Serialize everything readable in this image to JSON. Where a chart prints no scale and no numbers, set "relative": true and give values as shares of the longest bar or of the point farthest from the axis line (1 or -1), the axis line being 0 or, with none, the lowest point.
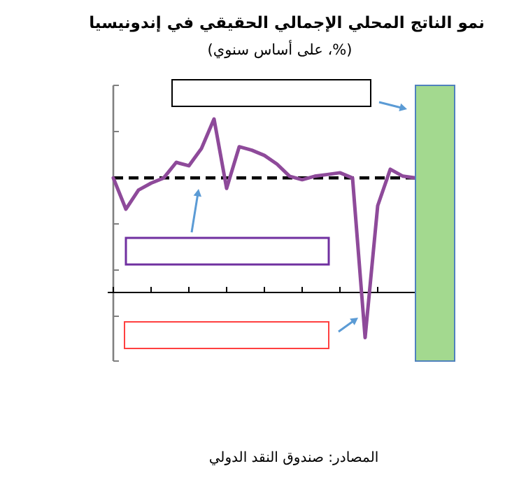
{
  "chart_data": {
    "type": "line",
    "title": "نمو الناتج المحلي الإجمالي الحقيقي في إندونيسيا",
    "subtitle": "(%، على أساس سنوي)",
    "annotations": [
      "المصادر: صندوق النقد الدولي"
    ],
    "categories": [
      null,
      null,
      null,
      null,
      null,
      null,
      null,
      null,
      null,
      null,
      null,
      null,
      null,
      null,
      null,
      null,
      null,
      null,
      null,
      null,
      null,
      null,
      null,
      null,
      null
    ],
    "series": [
      {
        "color": "#8e4a9a",
        "values": [
          0.66,
          0.48,
          0.59,
          0.63,
          0.66,
          0.75,
          0.73,
          0.83,
          1,
          0.6,
          0.84,
          0.82,
          0.79,
          0.74,
          0.67,
          0.65,
          0.67,
          0.68,
          0.69,
          0.66,
          -0.26,
          0.5,
          0.71,
          0.67,
          0.66
        ]
      }
    ],
    "relative": true,
    "ref_lines": [
      {
        "axis": "y",
        "value": 0.66,
        "color": "#000000",
        "line_style": "dashed"
      }
    ],
    "marker": "none",
    "line_style": "solid"
  }
}
